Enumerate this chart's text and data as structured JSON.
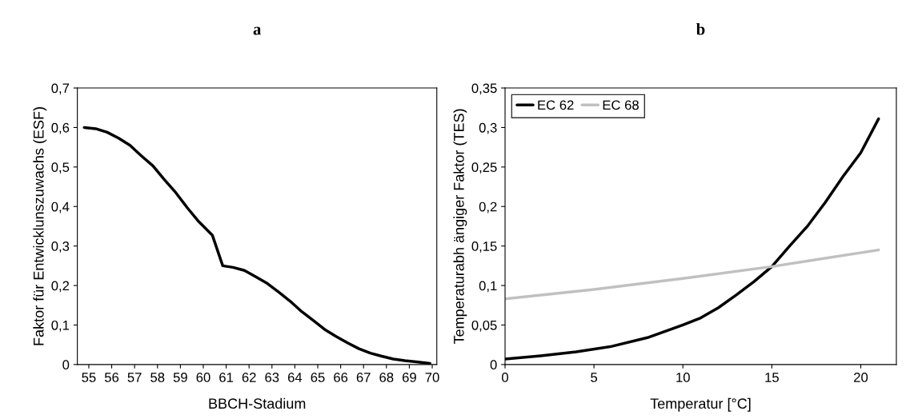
{
  "chart_data": [
    {
      "type": "line",
      "title": "a",
      "xlabel": "BBCH-Stadium",
      "ylabel": "Faktor für Entwicklunszuwachs (ESF)",
      "x": [
        54.8,
        55.3,
        55.8,
        56.3,
        56.8,
        57.3,
        57.8,
        58.3,
        58.8,
        59.3,
        59.8,
        60.4,
        60.85,
        61.3,
        61.8,
        62.3,
        62.8,
        63.3,
        63.8,
        64.3,
        64.8,
        65.3,
        65.8,
        66.3,
        66.8,
        67.3,
        67.8,
        68.3,
        68.8,
        69.3,
        69.9
      ],
      "series": [
        {
          "color": "#000000",
          "values": [
            0.6,
            0.597,
            0.588,
            0.573,
            0.555,
            0.528,
            0.503,
            0.468,
            0.435,
            0.397,
            0.362,
            0.327,
            0.25,
            0.246,
            0.238,
            0.222,
            0.205,
            0.183,
            0.16,
            0.134,
            0.112,
            0.089,
            0.071,
            0.055,
            0.04,
            0.029,
            0.021,
            0.014,
            0.01,
            0.007,
            0.003
          ]
        }
      ],
      "xlim": [
        54.5,
        70.2
      ],
      "xticks": [
        55,
        56,
        57,
        58,
        59,
        60,
        61,
        62,
        63,
        64,
        65,
        66,
        67,
        68,
        69,
        70
      ],
      "ylim": [
        0,
        0.7
      ],
      "yticks": [
        0,
        {
          "value": 0.1,
          "label": "0,1"
        },
        {
          "value": 0.2,
          "label": "0,2"
        },
        {
          "value": 0.3,
          "label": "0,3"
        },
        {
          "value": 0.4,
          "label": "0,4"
        },
        {
          "value": 0.5,
          "label": "0,5"
        },
        {
          "value": 0.6,
          "label": "0,6"
        },
        {
          "value": 0.7,
          "label": "0,7"
        }
      ],
      "grid": false,
      "legend": false,
      "marker": "none",
      "line_style": "solid"
    },
    {
      "type": "line",
      "title": "b",
      "xlabel": "Temperatur [°C]",
      "ylabel": "Temperaturabh ängiger Faktor (TES)",
      "x": [
        0,
        2,
        4,
        6,
        8,
        10,
        11,
        12,
        13,
        14,
        15,
        16,
        17,
        18,
        19,
        20,
        21
      ],
      "series": [
        {
          "name": "EC 62",
          "color": "#000000",
          "values": [
            0.007,
            0.011,
            0.016,
            0.023,
            0.034,
            0.05,
            0.059,
            0.072,
            0.088,
            0.105,
            0.124,
            0.15,
            0.175,
            0.205,
            0.238,
            0.268,
            0.311
          ]
        },
        {
          "name": "EC 68",
          "color": "#c0c0c0",
          "x": [
            0,
            5,
            10,
            15,
            21
          ],
          "values": [
            0.083,
            0.095,
            0.109,
            0.124,
            0.145
          ]
        }
      ],
      "xlim": [
        0,
        22
      ],
      "xticks": [
        0,
        5,
        10,
        15,
        20
      ],
      "ylim": [
        0,
        0.35
      ],
      "yticks": [
        0,
        {
          "value": 0.05,
          "label": "0,05"
        },
        {
          "value": 0.1,
          "label": "0,1"
        },
        {
          "value": 0.15,
          "label": "0,15"
        },
        {
          "value": 0.2,
          "label": "0,2"
        },
        {
          "value": 0.25,
          "label": "0,25"
        },
        {
          "value": 0.3,
          "label": "0,3"
        },
        {
          "value": 0.35,
          "label": "0,35"
        }
      ],
      "grid": false,
      "legend": "top left",
      "marker": "none",
      "line_style": "solid"
    }
  ]
}
